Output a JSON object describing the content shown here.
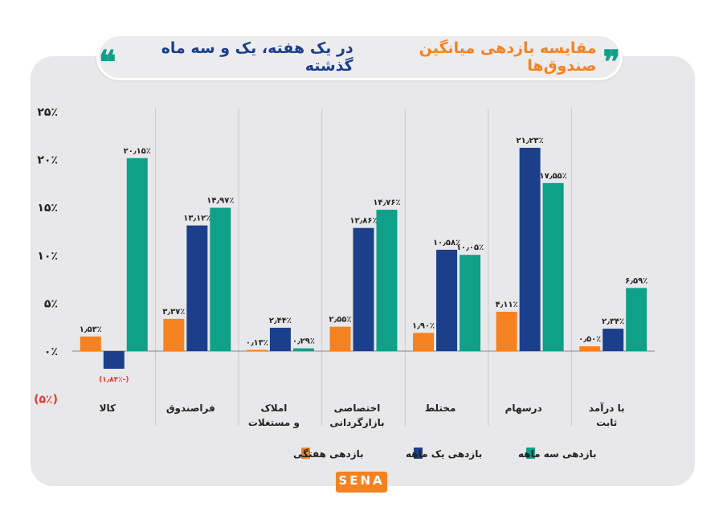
{
  "title": {
    "highlight": "مقایسه بازدهی میانگین صندوق‌ها",
    "rest": "در یک هفته، یک و سه ماه گذشته"
  },
  "logo": "SENA",
  "colors": {
    "weekly": "#f58220",
    "monthly": "#1b3f8b",
    "quarterly": "#0fa08a",
    "negative_label": "#e53935"
  },
  "chart_data": {
    "type": "bar",
    "categories": [
      [
        "کالا"
      ],
      [
        "فراصندوق"
      ],
      [
        "املاک",
        "و مستغلات"
      ],
      [
        "اختصاصی",
        "بازارگردانی"
      ],
      [
        "مختلط"
      ],
      [
        "درسهام"
      ],
      [
        "با درآمد",
        "ثابت"
      ]
    ],
    "series": [
      {
        "name": "بازدهی هفتگی",
        "color": "#f58220",
        "values": [
          1.53,
          3.37,
          0.13,
          2.55,
          1.9,
          4.11,
          0.5
        ],
        "labels": [
          "۱٫۵۳٪",
          "۳٫۳۷٪",
          "۰٫۱۳٪",
          "۲٫۵۵٪",
          "۱٫۹۰٪",
          "۴٫۱۱٪",
          "۰٫۵۰٪"
        ]
      },
      {
        "name": "بازدهی یک ماهه",
        "color": "#1b3f8b",
        "values": [
          -1.84,
          13.12,
          2.44,
          12.86,
          10.58,
          21.23,
          2.34
        ],
        "labels": [
          "(-۱٫۸۴٪)",
          "۱۳٫۱۲٪",
          "۲٫۴۴٪",
          "۱۲٫۸۶٪",
          "۱۰٫۵۸٪",
          "۲۱٫۲۳٪",
          "۲٫۳۴٪"
        ]
      },
      {
        "name": "بازدهی سه ماهه",
        "color": "#0fa08a",
        "values": [
          20.15,
          14.97,
          0.29,
          14.76,
          10.05,
          17.55,
          6.59
        ],
        "labels": [
          "۲۰٫۱۵٪",
          "۱۴٫۹۷٪",
          "۰٫۲۹٪",
          "۱۴٫۷۶٪",
          "۱۰٫۰۵٪",
          "۱۷٫۵۵٪",
          "۶٫۵۹٪"
        ]
      }
    ],
    "ylim": [
      -5,
      25
    ],
    "yticks": [
      25,
      20,
      15,
      10,
      5,
      0,
      -5
    ],
    "ytick_labels": [
      "۲۵٪",
      "۲۰٪",
      "۱۵٪",
      "۱۰٪",
      "۵٪",
      "۰٪",
      "(۵٪)"
    ],
    "grid": false,
    "legend_position": "bottom"
  }
}
